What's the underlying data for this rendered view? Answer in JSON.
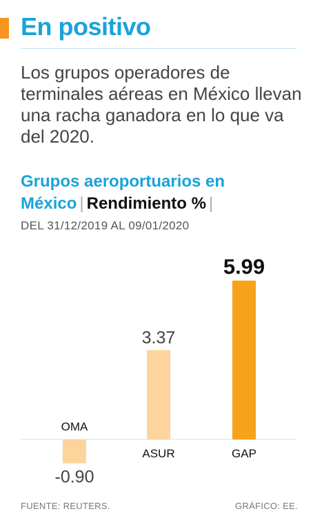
{
  "header": {
    "title": "En positivo",
    "lede": "Los grupos operadores de terminales aéreas en México llevan una racha ganadora en lo que va del 2020."
  },
  "footer": {
    "source": "FUENTE: REUTERS.",
    "credit": "GRÁFICO: EE."
  },
  "colors": {
    "accent": "#f7941d",
    "title_blue": "#1aa3d9",
    "bar_light": "#fdd49c",
    "bar_highlight": "#f7a21b"
  },
  "chart_data": {
    "type": "bar",
    "title": "Grupos aeroportuarios en México",
    "ylabel": "Rendimiento %",
    "subtitle": "DEL 31/12/2019 AL 09/01/2020",
    "categories": [
      "OMA",
      "ASUR",
      "GAP"
    ],
    "values": [
      -0.9,
      3.37,
      5.99
    ],
    "value_labels": [
      "-0.90",
      "3.37",
      "5.99"
    ],
    "highlight": "GAP",
    "grid": false,
    "legend": "none"
  }
}
